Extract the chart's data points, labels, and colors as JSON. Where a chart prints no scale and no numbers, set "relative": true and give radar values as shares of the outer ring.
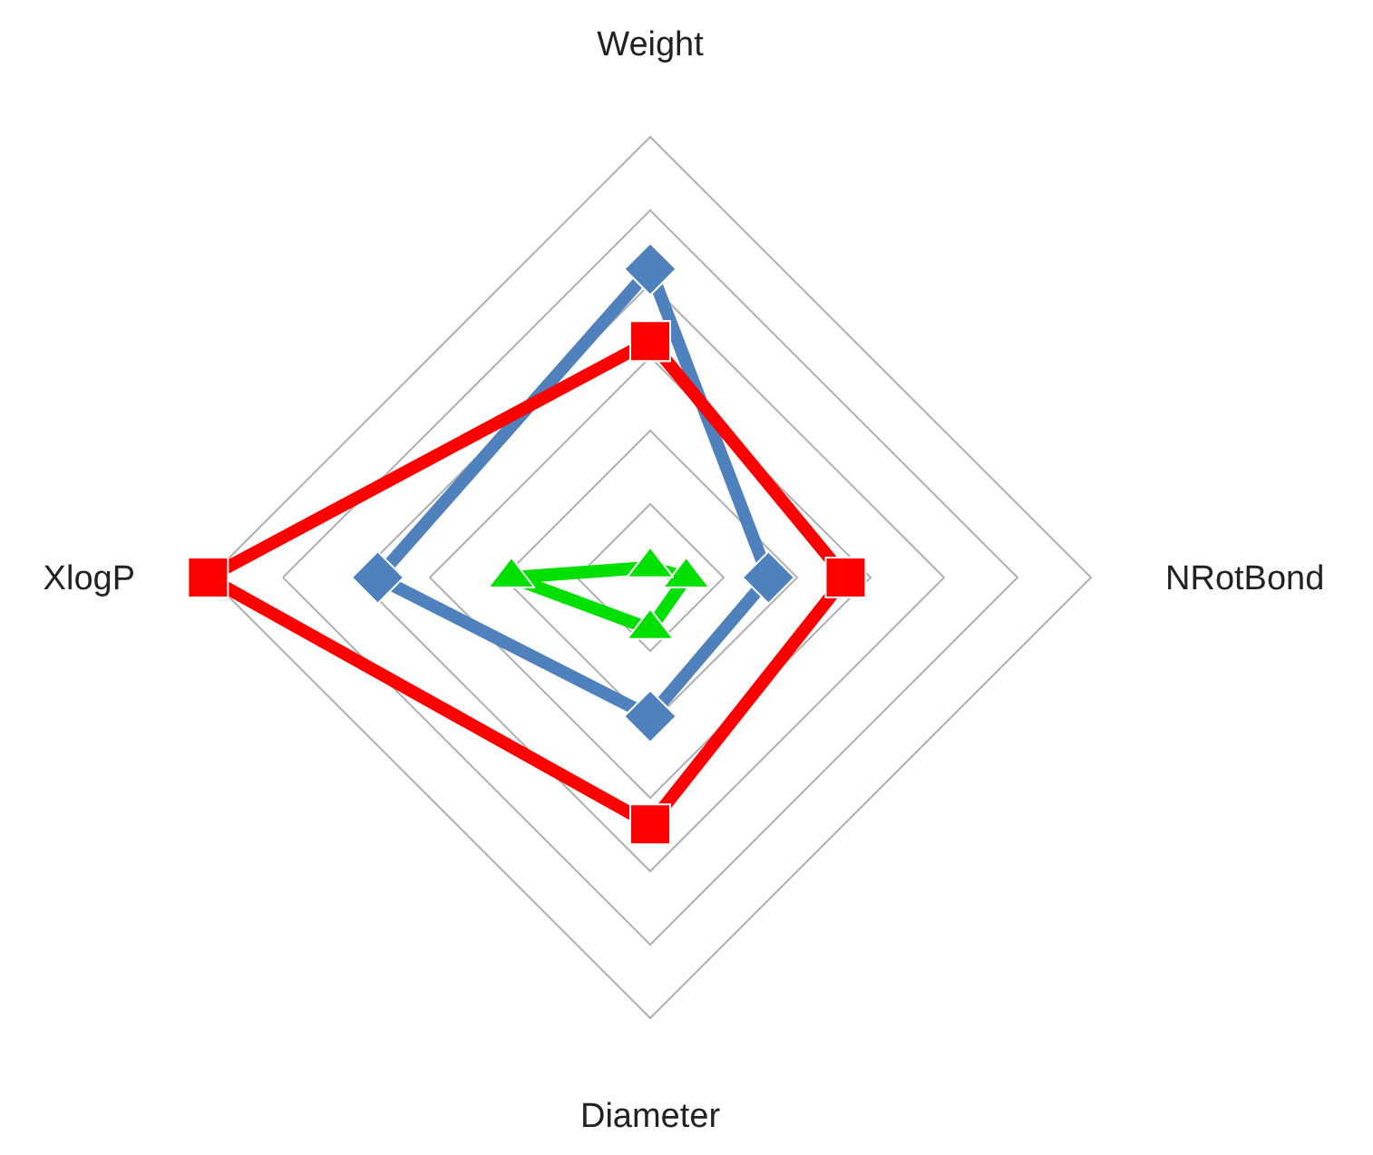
{
  "chart_data": {
    "type": "radar",
    "relative": true,
    "grid": true,
    "categories": [
      "Weight",
      "NRotBond",
      "Diameter",
      "XlogP"
    ],
    "series": [
      {
        "color": "#4f81bd",
        "marker": "diamond",
        "values": [
          0.6,
          0.23,
          0.27,
          0.53
        ]
      },
      {
        "color": "#ff0000",
        "marker": "square",
        "values": [
          0.46,
          0.38,
          0.48,
          0.86
        ]
      },
      {
        "color": "#00e000",
        "marker": "triangle",
        "values": [
          0.02,
          0.07,
          0.1,
          0.27
        ]
      }
    ]
  }
}
